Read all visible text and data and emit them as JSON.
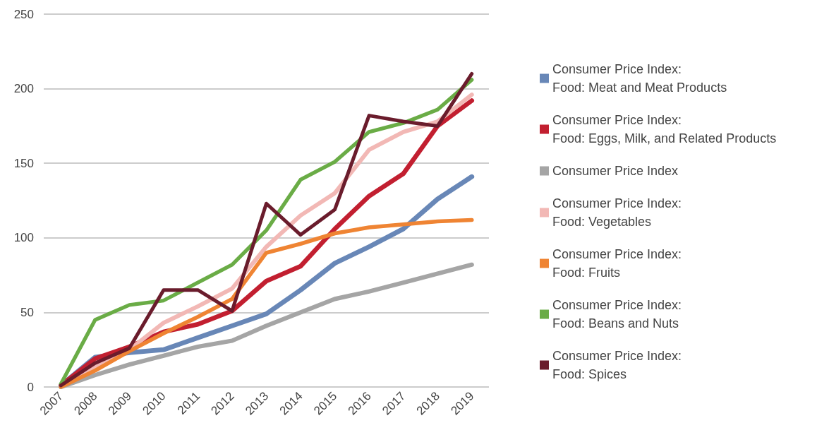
{
  "chart_data": {
    "type": "line",
    "categories": [
      "2007",
      "2008",
      "2009",
      "2010",
      "2011",
      "2012",
      "2013",
      "2014",
      "2015",
      "2016",
      "2017",
      "2018",
      "2019"
    ],
    "series": [
      {
        "name": "Consumer Price Index: Food: Meat and Meat Products",
        "color": "#6887b7",
        "values": [
          1,
          20,
          23,
          25,
          33,
          41,
          49,
          65,
          83,
          94,
          106,
          126,
          141
        ]
      },
      {
        "name": "Consumer Price Index: Food: Eggs, Milk, and Related Products",
        "color": "#c21f30",
        "values": [
          1,
          19,
          27,
          37,
          42,
          51,
          71,
          81,
          106,
          128,
          143,
          175,
          192
        ]
      },
      {
        "name": "Consumer Price Index",
        "color": "#a5a5a5",
        "values": [
          0,
          8,
          15,
          21,
          27,
          31,
          41,
          50,
          59,
          64,
          70,
          76,
          82
        ]
      },
      {
        "name": "Consumer Price Index: Food: Vegetables",
        "color": "#f2b8b5",
        "values": [
          1,
          14,
          25,
          43,
          54,
          66,
          94,
          115,
          130,
          159,
          171,
          178,
          196
        ]
      },
      {
        "name": "Consumer Price Index: Food: Fruits",
        "color": "#ef8433",
        "values": [
          0,
          11,
          24,
          36,
          47,
          59,
          90,
          96,
          103,
          107,
          109,
          111,
          112
        ]
      },
      {
        "name": "Consumer Price Index: Food: Beans and Nuts",
        "color": "#6aac46",
        "values": [
          2,
          45,
          55,
          58,
          70,
          82,
          105,
          139,
          151,
          171,
          177,
          186,
          206
        ]
      },
      {
        "name": "Consumer Price Index: Food: Spices",
        "color": "#6a1c2c",
        "values": [
          1,
          16,
          26,
          65,
          65,
          51,
          123,
          102,
          119,
          182,
          178,
          175,
          210
        ]
      }
    ],
    "ylim": [
      0,
      250
    ],
    "yticks": [
      0,
      50,
      100,
      150,
      200,
      250
    ],
    "grid": "y",
    "legend": "right",
    "marker": "none",
    "line_style": "solid"
  }
}
